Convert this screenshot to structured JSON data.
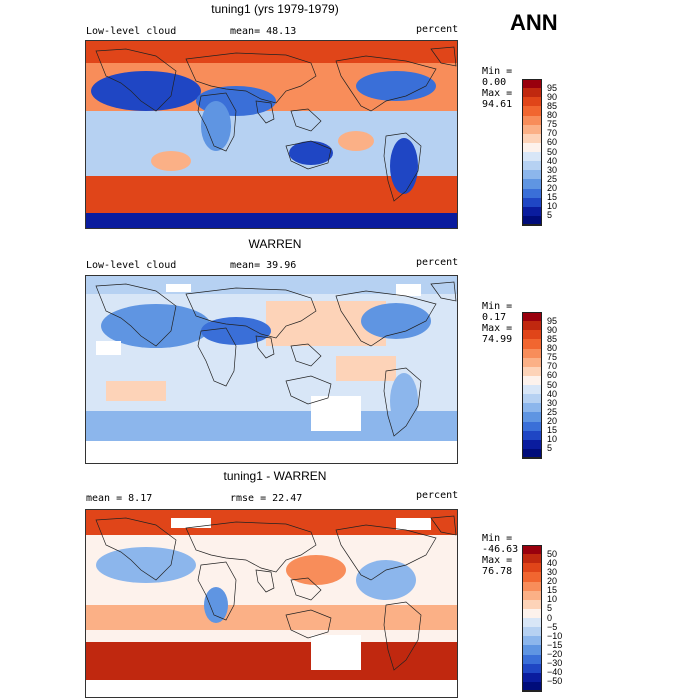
{
  "season": "ANN",
  "panels": [
    {
      "title": "tuning1 (yrs 1979-1979)",
      "left_label": "Low-level cloud",
      "stat_label": "mean=",
      "stat_value": "48.13",
      "units": "percent",
      "min_label": "Min =",
      "min_value": "0.00",
      "max_label": "Max =",
      "max_value": "94.61",
      "colorbar_ticks": [
        "95",
        "90",
        "85",
        "80",
        "75",
        "70",
        "60",
        "50",
        "40",
        "30",
        "25",
        "20",
        "15",
        "10",
        "5"
      ],
      "colorbar_colors": [
        "#99000d",
        "#c0280f",
        "#e04519",
        "#f16630",
        "#f88d5a",
        "#fbb086",
        "#fdd3b8",
        "#fdf2ec",
        "#d8e6f7",
        "#b6d1f2",
        "#8cb6ec",
        "#5f95e2",
        "#3a6fd8",
        "#1f46c4",
        "#0a1c9e",
        "#000c7a"
      ],
      "map_type": "field"
    },
    {
      "title": "WARREN",
      "left_label": "Low-level cloud",
      "stat_label": "mean=",
      "stat_value": "39.96",
      "units": "percent",
      "min_label": "Min =",
      "min_value": "0.17",
      "max_label": "Max =",
      "max_value": "74.99",
      "colorbar_ticks": [
        "95",
        "90",
        "85",
        "80",
        "75",
        "70",
        "60",
        "50",
        "40",
        "30",
        "25",
        "20",
        "15",
        "10",
        "5"
      ],
      "colorbar_colors": [
        "#99000d",
        "#c0280f",
        "#e04519",
        "#f16630",
        "#f88d5a",
        "#fbb086",
        "#fdd3b8",
        "#fdf2ec",
        "#d8e6f7",
        "#b6d1f2",
        "#8cb6ec",
        "#5f95e2",
        "#3a6fd8",
        "#1f46c4",
        "#0a1c9e",
        "#000c7a"
      ],
      "map_type": "obs"
    },
    {
      "title": "tuning1 - WARREN",
      "left_label": "mean =",
      "left_value": "8.17",
      "stat_label": "rmse =",
      "stat_value": "22.47",
      "units": "percent",
      "min_label": "Min =",
      "min_value": "-46.63",
      "max_label": "Max =",
      "max_value": "76.78",
      "colorbar_ticks": [
        "50",
        "40",
        "30",
        "20",
        "15",
        "10",
        "5",
        "0",
        "−5",
        "−10",
        "−15",
        "−20",
        "−30",
        "−40",
        "−50"
      ],
      "colorbar_colors": [
        "#99000d",
        "#c0280f",
        "#e04519",
        "#f16630",
        "#f88d5a",
        "#fbb086",
        "#fdd3b8",
        "#fdf2ec",
        "#d8e6f7",
        "#b6d1f2",
        "#8cb6ec",
        "#5f95e2",
        "#3a6fd8",
        "#1f46c4",
        "#0a1c9e",
        "#000c7a"
      ],
      "map_type": "diff"
    }
  ]
}
